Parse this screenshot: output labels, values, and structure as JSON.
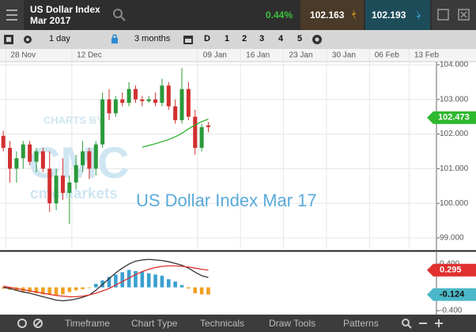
{
  "header": {
    "title": "US Dollar Index",
    "subtitle": "Mar 2017",
    "change": "0.44%",
    "sell": "102.163",
    "buy": "102.193"
  },
  "toolbar": {
    "interval": "1 day",
    "range": "3 months",
    "buttons": [
      "D",
      "1",
      "2",
      "3",
      "4",
      "5"
    ]
  },
  "footer": {
    "tabs": [
      "Timeframe",
      "Chart Type",
      "Technicals",
      "Draw Tools",
      "Patterns"
    ]
  },
  "chart_data": [
    {
      "type": "candlestick",
      "title": "US Dollar Index Mar 17",
      "watermark": [
        "CHARTS BY",
        "CMC",
        "cmcmarkets"
      ],
      "x": [
        0,
        1,
        2,
        3,
        4,
        5,
        6,
        7,
        8,
        9,
        10,
        11,
        12,
        13,
        14,
        15,
        16,
        17,
        18,
        19,
        20,
        21,
        22,
        23,
        24,
        25,
        26,
        27,
        28,
        29,
        30,
        31
      ],
      "open": [
        101.95,
        101.6,
        101.0,
        101.3,
        101.7,
        101.2,
        101.5,
        101.0,
        100.0,
        100.8,
        100.3,
        100.6,
        101.1,
        101.5,
        101.0,
        101.7,
        103.0,
        102.6,
        103.0,
        102.9,
        103.3,
        103.0,
        102.95,
        103.0,
        102.9,
        103.4,
        102.8,
        102.4,
        103.3,
        102.5,
        101.6,
        102.25
      ],
      "high": [
        102.1,
        101.8,
        101.5,
        101.8,
        101.8,
        101.6,
        101.6,
        101.5,
        101.0,
        101.3,
        100.8,
        101.4,
        101.8,
        101.6,
        101.8,
        103.2,
        103.3,
        103.1,
        103.2,
        103.5,
        103.4,
        103.1,
        103.1,
        103.2,
        103.6,
        103.5,
        103.0,
        103.9,
        103.5,
        102.7,
        102.3,
        102.35
      ],
      "low": [
        101.5,
        100.6,
        100.6,
        101.0,
        101.1,
        100.9,
        100.9,
        99.75,
        99.8,
        100.1,
        99.4,
        100.4,
        100.9,
        100.7,
        100.8,
        101.6,
        102.4,
        102.5,
        102.8,
        102.8,
        102.9,
        102.8,
        102.9,
        102.8,
        102.8,
        102.7,
        102.3,
        102.3,
        102.4,
        101.4,
        101.5,
        102.05
      ],
      "close": [
        101.6,
        101.0,
        101.3,
        101.7,
        101.2,
        101.5,
        101.0,
        100.0,
        100.8,
        100.3,
        100.6,
        101.1,
        101.5,
        101.0,
        101.7,
        103.0,
        102.6,
        103.0,
        102.9,
        103.3,
        103.0,
        102.95,
        103.0,
        102.9,
        103.4,
        102.8,
        102.4,
        103.3,
        102.5,
        101.6,
        102.2,
        102.2
      ],
      "up_color": "#2a9a3a",
      "down_color": "#d23030",
      "overlay": {
        "color": "#22b022",
        "values": [
          null,
          null,
          null,
          null,
          null,
          null,
          null,
          null,
          null,
          null,
          null,
          null,
          null,
          null,
          null,
          null,
          null,
          null,
          null,
          null,
          null,
          101.62,
          101.67,
          101.72,
          101.78,
          101.84,
          101.92,
          102.02,
          102.15,
          102.26,
          102.36,
          102.43
        ]
      },
      "last_price": {
        "value": 102.473,
        "label": "102.473",
        "color": "#2eb82e"
      },
      "xlim": [
        -0.5,
        65.5
      ],
      "xticks": [
        {
          "value": 3,
          "label": "28 Nov"
        },
        {
          "value": 13,
          "label": "12 Dec"
        },
        {
          "value": 32,
          "label": "09 Jan"
        },
        {
          "value": 38.5,
          "label": "16 Jan"
        },
        {
          "value": 45,
          "label": "23 Jan"
        },
        {
          "value": 51.5,
          "label": "30 Jan"
        },
        {
          "value": 58,
          "label": "06 Feb"
        },
        {
          "value": 64,
          "label": "13 Feb"
        }
      ],
      "ylim": [
        98.68,
        104.09
      ],
      "yticks": [
        {
          "value": 99,
          "label": "99.000"
        },
        {
          "value": 100,
          "label": "100.000"
        },
        {
          "value": 101,
          "label": "101.000"
        },
        {
          "value": 102,
          "label": "102.000"
        },
        {
          "value": 103,
          "label": "103.000"
        },
        {
          "value": 104,
          "label": "104.000"
        }
      ],
      "grid": true
    },
    {
      "type": "macd",
      "x": [
        0,
        1,
        2,
        3,
        4,
        5,
        6,
        7,
        8,
        9,
        10,
        11,
        12,
        13,
        14,
        15,
        16,
        17,
        18,
        19,
        20,
        21,
        22,
        23,
        24,
        25,
        26,
        27,
        28,
        29,
        30,
        31
      ],
      "histogram": {
        "positive_color": "#3aa0d0",
        "negative_color": "#f0a020",
        "label_color": "#4ab8c8",
        "values": [
          -0.02,
          -0.04,
          -0.06,
          -0.07,
          -0.08,
          -0.1,
          -0.12,
          -0.13,
          -0.14,
          -0.12,
          -0.08,
          -0.05,
          -0.03,
          -0.01,
          0.06,
          0.12,
          0.18,
          0.22,
          0.26,
          0.3,
          0.28,
          0.27,
          0.24,
          0.22,
          0.2,
          0.14,
          0.1,
          0.04,
          -0.02,
          -0.1,
          -0.12,
          -0.124
        ]
      },
      "series": [
        {
          "color": "#333333",
          "values": [
            0,
            -0.02,
            -0.05,
            -0.08,
            -0.1,
            -0.13,
            -0.16,
            -0.19,
            -0.22,
            -0.23,
            -0.22,
            -0.2,
            -0.17,
            -0.13,
            -0.05,
            0.05,
            0.15,
            0.25,
            0.33,
            0.4,
            0.45,
            0.47,
            0.48,
            0.47,
            0.46,
            0.44,
            0.41,
            0.38,
            0.33,
            0.26,
            0.2,
            0.17
          ]
        },
        {
          "color": "#e03030",
          "values": [
            0.02,
            0.0,
            -0.02,
            -0.04,
            -0.06,
            -0.08,
            -0.1,
            -0.12,
            -0.14,
            -0.15,
            -0.16,
            -0.16,
            -0.15,
            -0.13,
            -0.1,
            -0.06,
            -0.02,
            0.04,
            0.1,
            0.16,
            0.22,
            0.27,
            0.31,
            0.34,
            0.36,
            0.37,
            0.37,
            0.36,
            0.35,
            0.33,
            0.31,
            0.295
          ]
        }
      ],
      "xlim": [
        -0.5,
        65.5
      ],
      "ylim": [
        -0.44,
        0.59
      ],
      "yticks": [
        {
          "value": -0.4,
          "label": "-0.400"
        },
        {
          "value": 0.4,
          "label": "0.400"
        }
      ]
    }
  ]
}
